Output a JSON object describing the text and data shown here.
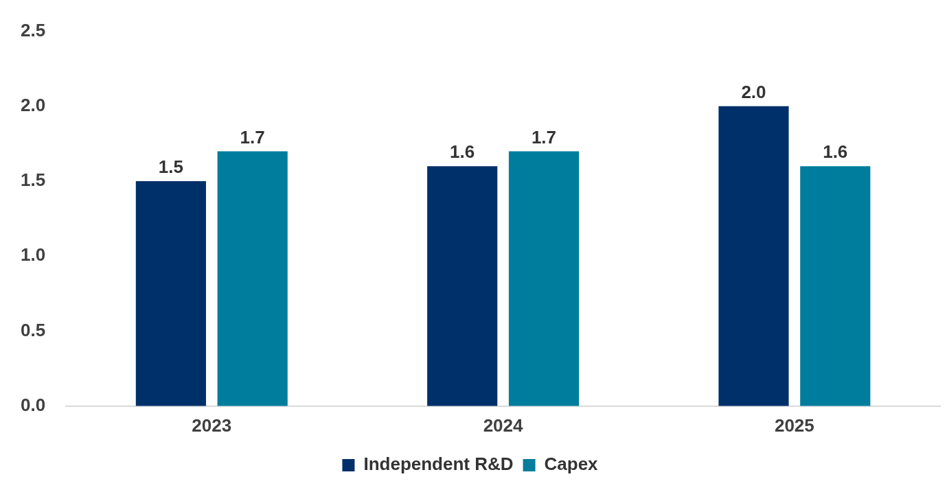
{
  "chart_data": {
    "type": "bar",
    "categories": [
      "2023",
      "2024",
      "2025"
    ],
    "series": [
      {
        "name": "Independent R&D",
        "color": "#003069",
        "values": [
          1.5,
          1.6,
          2.0
        ],
        "value_labels": [
          "1.5",
          "1.6",
          "2.0"
        ]
      },
      {
        "name": "Capex",
        "color": "#007d9c",
        "values": [
          1.7,
          1.7,
          1.6
        ],
        "value_labels": [
          "1.7",
          "1.7",
          "1.6"
        ]
      }
    ],
    "ylim": [
      0,
      2.5
    ],
    "yticks": [
      {
        "value": 0,
        "label": "0.0"
      },
      {
        "value": 0.5,
        "label": "0.5"
      },
      {
        "value": 1,
        "label": "1.0"
      },
      {
        "value": 1.5,
        "label": "1.5"
      },
      {
        "value": 2,
        "label": "2.0"
      },
      {
        "value": 2.5,
        "label": "2.5"
      }
    ],
    "legend": "bottom"
  }
}
